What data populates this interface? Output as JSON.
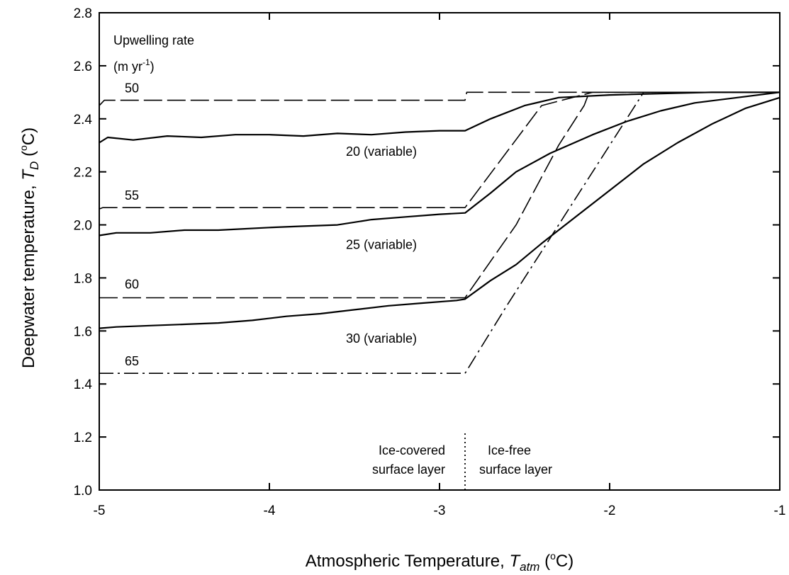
{
  "chart_data": {
    "type": "line",
    "xlabel": {
      "main": "Atmospheric Temperature, ",
      "var": "T",
      "sub": "atm",
      "unit_pre": " (",
      "unit_sup": "o",
      "unit_post": "C)"
    },
    "ylabel": {
      "main": "Deepwater temperature, ",
      "var": "T",
      "sub": "D",
      "unit_pre": " (",
      "unit_sup": "o",
      "unit_post": "C)"
    },
    "xlim": [
      -5,
      -1
    ],
    "ylim": [
      1.0,
      2.8
    ],
    "x_ticks": [
      -5,
      -4,
      -3,
      -2,
      -1
    ],
    "x_tick_labels": [
      "-5",
      "-4",
      "-3",
      "-2",
      "-1"
    ],
    "y_ticks": [
      1.0,
      1.2,
      1.4,
      1.6,
      1.8,
      2.0,
      2.2,
      2.4,
      2.6,
      2.8
    ],
    "y_tick_labels": [
      "1.0",
      "1.2",
      "1.4",
      "1.6",
      "1.8",
      "2.0",
      "2.2",
      "2.4",
      "2.6",
      "2.8"
    ],
    "grid": false,
    "legend": {
      "title_line1": "Upwelling rate",
      "title_line2_pre": "(m yr",
      "title_line2_sup": "-1",
      "title_line2_post": ")"
    },
    "boundary": {
      "x": -2.85,
      "left_label": [
        "Ice-covered",
        "surface layer"
      ],
      "right_label": [
        "Ice-free",
        "surface layer"
      ]
    },
    "series": [
      {
        "name": "50",
        "style": "long-dash",
        "x": [
          -5,
          -4.97,
          -2.85,
          -2.84,
          -2.4,
          -1
        ],
        "y": [
          2.45,
          2.47,
          2.47,
          2.5,
          2.5,
          2.5
        ]
      },
      {
        "name": "55",
        "style": "long-dash",
        "x": [
          -5,
          -4.98,
          -2.85,
          -2.4,
          -2.1,
          -1
        ],
        "y": [
          2.06,
          2.065,
          2.065,
          2.45,
          2.5,
          2.5
        ]
      },
      {
        "name": "60",
        "style": "long-dash",
        "x": [
          -5,
          -2.85,
          -2.55,
          -2.3,
          -2.15,
          -2.12,
          -1
        ],
        "y": [
          1.725,
          1.725,
          2.0,
          2.3,
          2.45,
          2.5,
          2.5
        ]
      },
      {
        "name": "65",
        "style": "dash-dot",
        "x": [
          -5,
          -2.85,
          -2.6,
          -2.3,
          -2.0,
          -1.8,
          -1
        ],
        "y": [
          1.44,
          1.44,
          1.7,
          2.0,
          2.3,
          2.5,
          2.5
        ]
      },
      {
        "name": "20 (variable)",
        "style": "solid",
        "x": [
          -5,
          -4.95,
          -4.8,
          -4.6,
          -4.4,
          -4.2,
          -4.0,
          -3.8,
          -3.6,
          -3.4,
          -3.2,
          -3.0,
          -2.85,
          -2.7,
          -2.5,
          -2.3,
          -2.0,
          -1.7,
          -1.4,
          -1
        ],
        "y": [
          2.31,
          2.33,
          2.32,
          2.335,
          2.33,
          2.34,
          2.34,
          2.335,
          2.345,
          2.34,
          2.35,
          2.355,
          2.355,
          2.4,
          2.45,
          2.48,
          2.49,
          2.495,
          2.5,
          2.5
        ]
      },
      {
        "name": "25 (variable)",
        "style": "solid",
        "x": [
          -5,
          -4.9,
          -4.7,
          -4.5,
          -4.3,
          -4.0,
          -3.8,
          -3.6,
          -3.4,
          -3.2,
          -3.0,
          -2.85,
          -2.7,
          -2.55,
          -2.35,
          -2.1,
          -1.9,
          -1.7,
          -1.5,
          -1.25,
          -1
        ],
        "y": [
          1.96,
          1.97,
          1.97,
          1.98,
          1.98,
          1.99,
          1.995,
          2.0,
          2.02,
          2.03,
          2.04,
          2.045,
          2.12,
          2.2,
          2.27,
          2.34,
          2.39,
          2.43,
          2.46,
          2.48,
          2.5
        ]
      },
      {
        "name": "30 (variable)",
        "style": "solid",
        "x": [
          -5,
          -4.9,
          -4.7,
          -4.5,
          -4.3,
          -4.1,
          -3.9,
          -3.7,
          -3.5,
          -3.3,
          -3.1,
          -2.9,
          -2.85,
          -2.7,
          -2.55,
          -2.4,
          -2.2,
          -2.0,
          -1.8,
          -1.6,
          -1.4,
          -1.2,
          -1
        ],
        "y": [
          1.61,
          1.615,
          1.62,
          1.625,
          1.63,
          1.64,
          1.655,
          1.665,
          1.68,
          1.695,
          1.705,
          1.715,
          1.72,
          1.79,
          1.85,
          1.93,
          2.03,
          2.13,
          2.23,
          2.31,
          2.38,
          2.44,
          2.48
        ]
      }
    ],
    "series_labels": [
      {
        "text": "50",
        "x": -4.85,
        "y": 2.5
      },
      {
        "text": "55",
        "x": -4.85,
        "y": 2.095
      },
      {
        "text": "60",
        "x": -4.85,
        "y": 1.76
      },
      {
        "text": "65",
        "x": -4.85,
        "y": 1.47
      },
      {
        "text": "20 (variable)",
        "x": -3.55,
        "y": 2.26
      },
      {
        "text": "25 (variable)",
        "x": -3.55,
        "y": 1.91
      },
      {
        "text": "30 (variable)",
        "x": -3.55,
        "y": 1.555
      }
    ]
  }
}
